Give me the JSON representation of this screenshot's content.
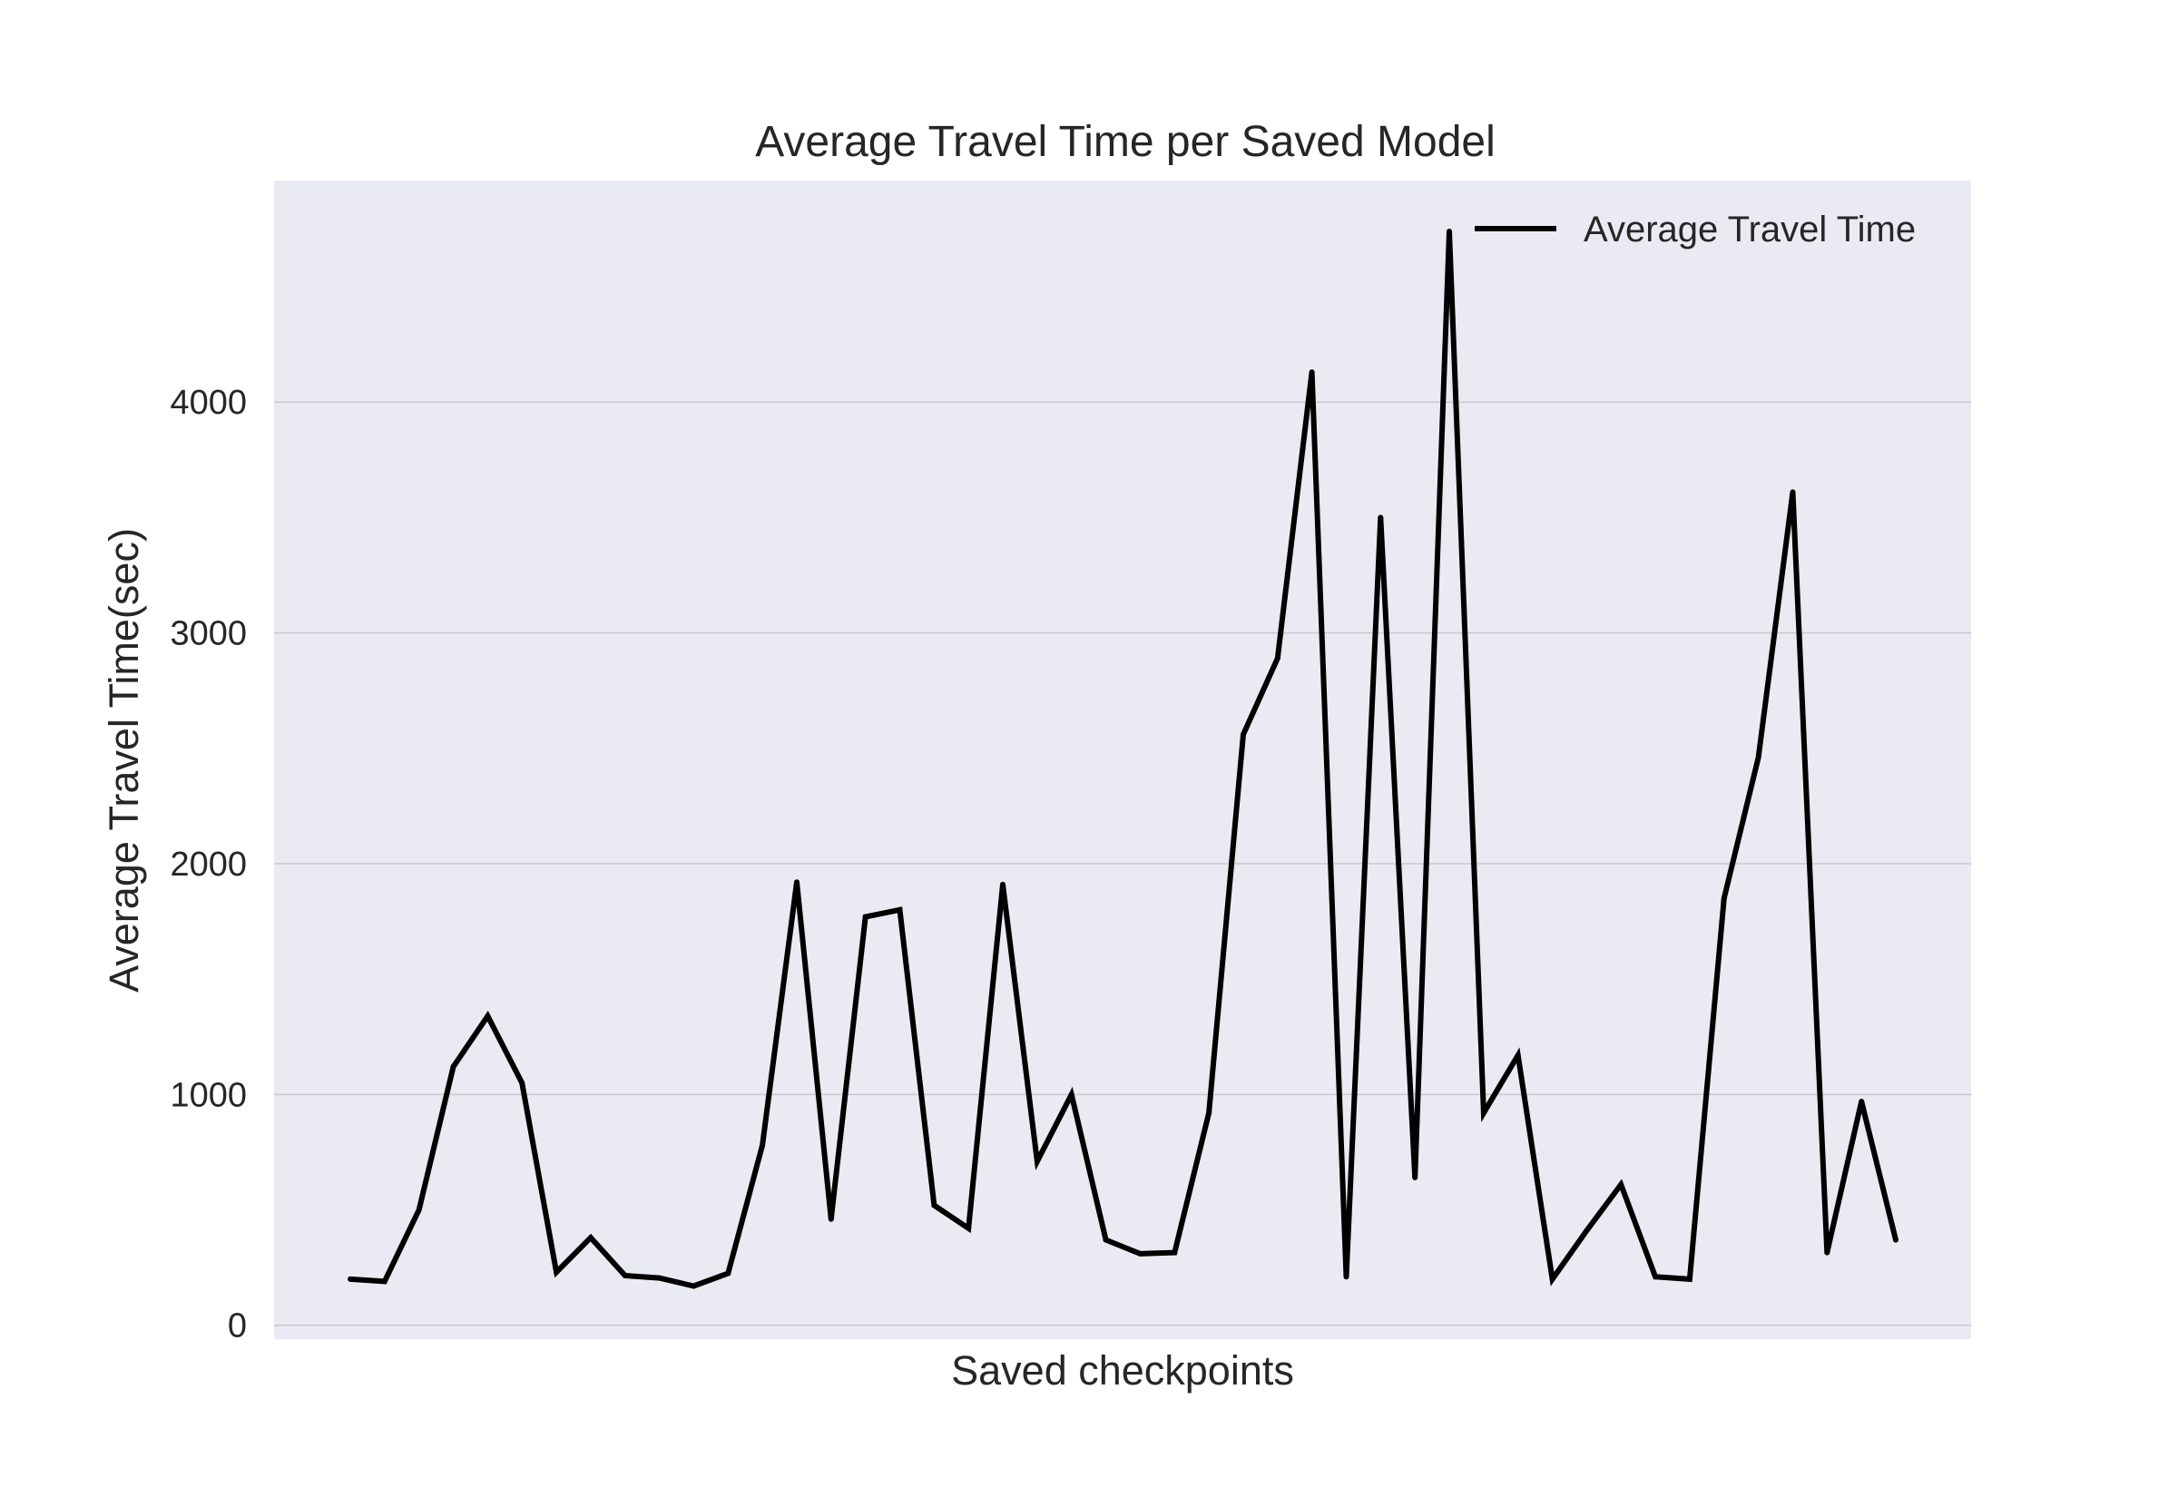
{
  "chart_data": {
    "type": "line",
    "title": "Average Travel Time per Saved Model",
    "xlabel": "Saved checkpoints",
    "ylabel": "Average Travel Time(sec)",
    "ylim": [
      -60,
      4960
    ],
    "yticks": [
      0,
      1000,
      2000,
      3000,
      4000
    ],
    "xticks_visible": false,
    "grid": "horizontal",
    "legend_position": "top-right",
    "colors": {
      "background": "#eaeaf2",
      "grid": "#c8c8cc",
      "line": "#000000"
    },
    "series": [
      {
        "name": "Average Travel Time",
        "color": "#000000",
        "values": [
          200,
          190,
          500,
          1120,
          1340,
          1050,
          230,
          380,
          215,
          205,
          170,
          225,
          780,
          1920,
          460,
          1770,
          1800,
          520,
          420,
          1910,
          710,
          1000,
          370,
          310,
          315,
          920,
          2560,
          2890,
          4130,
          210,
          3500,
          640,
          4740,
          920,
          1170,
          200,
          410,
          610,
          210,
          200,
          1850,
          2460,
          3610,
          315,
          970,
          370
        ]
      }
    ]
  }
}
